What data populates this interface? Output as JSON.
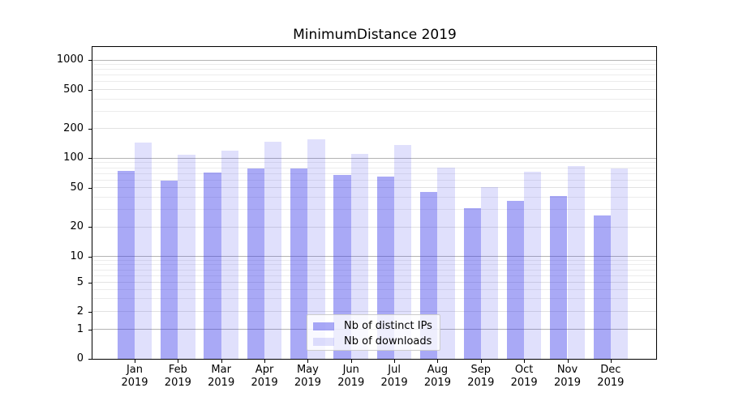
{
  "title": "MinimumDistance 2019",
  "chart_data": {
    "type": "bar",
    "title": "MinimumDistance 2019",
    "categories": [
      "Jan 2019",
      "Feb 2019",
      "Mar 2019",
      "Apr 2019",
      "May 2019",
      "Jun 2019",
      "Jul 2019",
      "Aug 2019",
      "Sep 2019",
      "Oct 2019",
      "Nov 2019",
      "Dec 2019"
    ],
    "series": [
      {
        "name": "Nb of distinct IPs",
        "values": [
          74,
          59,
          72,
          79,
          79,
          68,
          65,
          45,
          31,
          37,
          41,
          26
        ]
      },
      {
        "name": "Nb of downloads",
        "values": [
          144,
          109,
          120,
          148,
          155,
          110,
          136,
          80,
          51,
          73,
          83,
          79
        ]
      }
    ],
    "yscale": "symlog",
    "ylim": [
      0,
      1400
    ],
    "yticks": [
      0,
      1,
      2,
      5,
      10,
      20,
      50,
      100,
      200,
      500,
      1000
    ],
    "grid": true,
    "legend_position": "lower center"
  },
  "colors": {
    "bar_ips": "rgba(60,60,235,0.44)",
    "bar_downloads": "rgba(60,60,235,0.16)",
    "grid_major": "#b3b3b3",
    "grid_mid": "#e2e2e2",
    "grid_minor": "#ececec",
    "axis": "#000000",
    "legend_border": "#cccccc"
  }
}
